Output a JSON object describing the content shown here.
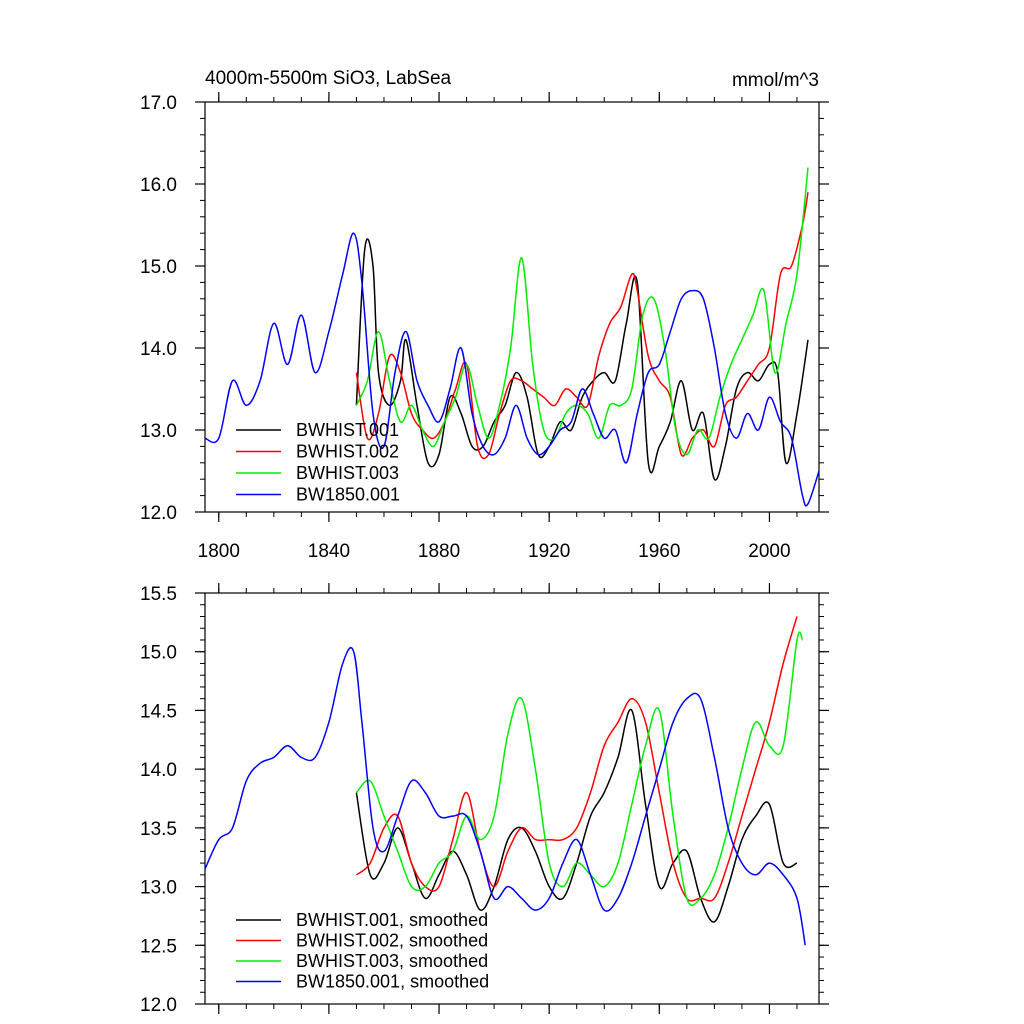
{
  "chart_data": [
    {
      "type": "line",
      "title": "4000m-5500m SiO3, LabSea",
      "units": "mmol/m^3",
      "xlim": [
        1795,
        2018
      ],
      "ylim": [
        12.0,
        17.0
      ],
      "xticks": [
        1800,
        1840,
        1880,
        1920,
        1960,
        2000
      ],
      "xtick_labels": [
        "1800",
        "1840",
        "1880",
        "1920",
        "1960",
        "2000"
      ],
      "yticks": [
        12.0,
        13.0,
        14.0,
        15.0,
        16.0,
        17.0
      ],
      "ytick_labels": [
        "12.0",
        "13.0",
        "14.0",
        "15.0",
        "16.0",
        "17.0"
      ],
      "legend_position": "lower-left",
      "series": [
        {
          "name": "BWHIST.001",
          "color": "#000000",
          "x": [
            1850,
            1853,
            1856,
            1858,
            1862,
            1866,
            1868,
            1872,
            1876,
            1880,
            1884,
            1888,
            1892,
            1896,
            1900,
            1904,
            1908,
            1912,
            1916,
            1920,
            1924,
            1928,
            1932,
            1936,
            1940,
            1944,
            1948,
            1952,
            1956,
            1960,
            1964,
            1968,
            1972,
            1976,
            1980,
            1984,
            1988,
            1992,
            1996,
            2000,
            2003,
            2006,
            2010,
            2014
          ],
          "y": [
            13.3,
            15.2,
            15.0,
            13.7,
            13.3,
            13.6,
            14.1,
            13.3,
            12.6,
            12.7,
            13.4,
            13.2,
            12.8,
            12.8,
            13.1,
            13.3,
            13.7,
            13.4,
            12.7,
            12.8,
            13.1,
            13.0,
            13.4,
            13.6,
            13.7,
            13.6,
            14.3,
            14.8,
            12.6,
            12.8,
            13.1,
            13.6,
            13.0,
            13.2,
            12.4,
            12.8,
            13.5,
            13.7,
            13.6,
            13.8,
            13.7,
            12.6,
            13.2,
            14.1
          ]
        },
        {
          "name": "BWHIST.002",
          "color": "#ff0000",
          "x": [
            1850,
            1854,
            1858,
            1862,
            1866,
            1870,
            1874,
            1878,
            1882,
            1886,
            1890,
            1894,
            1898,
            1902,
            1906,
            1910,
            1914,
            1918,
            1922,
            1926,
            1930,
            1934,
            1938,
            1942,
            1946,
            1950,
            1952,
            1956,
            1960,
            1964,
            1968,
            1972,
            1976,
            1980,
            1984,
            1988,
            1992,
            1996,
            2000,
            2004,
            2008,
            2012,
            2014
          ],
          "y": [
            13.7,
            12.9,
            13.2,
            13.9,
            13.7,
            13.2,
            13.0,
            12.9,
            13.1,
            13.5,
            13.8,
            12.8,
            12.7,
            13.2,
            13.6,
            13.6,
            13.5,
            13.4,
            13.3,
            13.5,
            13.4,
            13.3,
            13.9,
            14.3,
            14.5,
            14.9,
            14.7,
            13.9,
            13.6,
            13.4,
            12.7,
            12.9,
            13.0,
            12.8,
            13.3,
            13.4,
            13.6,
            13.8,
            14.0,
            14.9,
            15.0,
            15.5,
            15.9
          ]
        },
        {
          "name": "BWHIST.003",
          "color": "#00ee00",
          "x": [
            1850,
            1854,
            1858,
            1862,
            1866,
            1870,
            1874,
            1878,
            1882,
            1886,
            1890,
            1894,
            1898,
            1902,
            1906,
            1910,
            1914,
            1918,
            1922,
            1926,
            1930,
            1934,
            1938,
            1942,
            1946,
            1950,
            1954,
            1958,
            1962,
            1966,
            1970,
            1974,
            1978,
            1982,
            1986,
            1990,
            1994,
            1998,
            2002,
            2006,
            2010,
            2014
          ],
          "y": [
            13.3,
            13.6,
            14.2,
            13.6,
            13.1,
            13.3,
            13.0,
            12.8,
            13.1,
            13.4,
            13.8,
            13.3,
            12.9,
            13.3,
            14.0,
            15.1,
            13.8,
            13.0,
            12.9,
            13.2,
            13.3,
            13.2,
            12.9,
            13.3,
            13.3,
            13.5,
            14.4,
            14.6,
            14.0,
            13.0,
            12.7,
            13.0,
            12.9,
            13.4,
            13.8,
            14.1,
            14.4,
            14.7,
            13.7,
            14.3,
            14.9,
            16.2
          ]
        },
        {
          "name": "BW1850.001",
          "color": "#0000ff",
          "x": [
            1795,
            1800,
            1805,
            1810,
            1815,
            1820,
            1825,
            1830,
            1835,
            1840,
            1845,
            1849,
            1852,
            1856,
            1860,
            1864,
            1868,
            1872,
            1876,
            1880,
            1884,
            1888,
            1892,
            1896,
            1900,
            1904,
            1908,
            1912,
            1916,
            1920,
            1924,
            1928,
            1932,
            1936,
            1940,
            1944,
            1948,
            1952,
            1956,
            1960,
            1964,
            1968,
            1972,
            1976,
            1980,
            1984,
            1988,
            1992,
            1996,
            2000,
            2004,
            2008,
            2012,
            2014,
            2018
          ],
          "y": [
            12.9,
            12.9,
            13.6,
            13.3,
            13.6,
            14.3,
            13.8,
            14.4,
            13.7,
            14.2,
            14.9,
            15.4,
            14.8,
            13.2,
            12.8,
            13.7,
            14.2,
            13.6,
            13.3,
            13.1,
            13.5,
            14.0,
            13.2,
            12.8,
            12.7,
            12.9,
            13.3,
            12.9,
            12.7,
            12.8,
            13.0,
            13.1,
            13.5,
            13.2,
            12.9,
            13.0,
            12.6,
            13.2,
            13.7,
            13.8,
            14.2,
            14.6,
            14.7,
            14.6,
            14.0,
            13.2,
            12.9,
            13.2,
            13.0,
            13.4,
            13.1,
            12.9,
            12.2,
            12.1,
            12.5
          ]
        }
      ]
    },
    {
      "type": "line",
      "xlim": [
        1795,
        2018
      ],
      "ylim": [
        12.0,
        15.5
      ],
      "xticks": [
        1800,
        1840,
        1880,
        1920,
        1960,
        2000
      ],
      "yticks": [
        12.0,
        12.5,
        13.0,
        13.5,
        14.0,
        14.5,
        15.0,
        15.5
      ],
      "ytick_labels": [
        "12.0",
        "12.5",
        "13.0",
        "13.5",
        "14.0",
        "14.5",
        "15.0",
        "15.5"
      ],
      "legend_position": "lower-left",
      "series": [
        {
          "name": "BWHIST.001, smoothed",
          "color": "#000000",
          "x": [
            1850,
            1855,
            1860,
            1865,
            1870,
            1875,
            1880,
            1885,
            1890,
            1895,
            1900,
            1905,
            1910,
            1915,
            1920,
            1925,
            1930,
            1935,
            1940,
            1945,
            1950,
            1955,
            1960,
            1965,
            1970,
            1975,
            1980,
            1985,
            1990,
            1995,
            2000,
            2005,
            2010
          ],
          "y": [
            13.8,
            13.1,
            13.2,
            13.5,
            13.2,
            12.9,
            13.1,
            13.3,
            13.1,
            12.8,
            13.0,
            13.4,
            13.5,
            13.3,
            13.0,
            12.9,
            13.2,
            13.6,
            13.8,
            14.1,
            14.5,
            13.7,
            13.0,
            13.2,
            13.3,
            12.9,
            12.7,
            13.0,
            13.4,
            13.6,
            13.7,
            13.2,
            13.2
          ]
        },
        {
          "name": "BWHIST.002, smoothed",
          "color": "#ff0000",
          "x": [
            1850,
            1855,
            1860,
            1865,
            1870,
            1875,
            1880,
            1885,
            1890,
            1895,
            1900,
            1905,
            1910,
            1915,
            1920,
            1925,
            1930,
            1935,
            1940,
            1945,
            1950,
            1955,
            1960,
            1965,
            1970,
            1975,
            1980,
            1985,
            1990,
            1995,
            2000,
            2005,
            2010
          ],
          "y": [
            13.1,
            13.2,
            13.5,
            13.6,
            13.2,
            13.0,
            13.0,
            13.4,
            13.8,
            13.3,
            13.0,
            13.3,
            13.5,
            13.4,
            13.4,
            13.4,
            13.5,
            13.8,
            14.2,
            14.4,
            14.6,
            14.4,
            13.8,
            13.2,
            12.9,
            12.9,
            12.9,
            13.2,
            13.6,
            14.0,
            14.4,
            14.9,
            15.3
          ]
        },
        {
          "name": "BWHIST.003, smoothed",
          "color": "#00ee00",
          "x": [
            1850,
            1855,
            1860,
            1865,
            1870,
            1875,
            1880,
            1885,
            1890,
            1895,
            1900,
            1905,
            1910,
            1915,
            1920,
            1925,
            1930,
            1935,
            1940,
            1945,
            1950,
            1955,
            1960,
            1965,
            1970,
            1975,
            1980,
            1985,
            1990,
            1995,
            2000,
            2005,
            2010,
            2012
          ],
          "y": [
            13.8,
            13.9,
            13.6,
            13.3,
            13.0,
            13.0,
            13.2,
            13.3,
            13.6,
            13.4,
            13.6,
            14.3,
            14.6,
            14.0,
            13.2,
            13.0,
            13.2,
            13.1,
            13.0,
            13.2,
            13.7,
            14.2,
            14.5,
            13.6,
            12.9,
            12.9,
            13.1,
            13.5,
            14.0,
            14.4,
            14.2,
            14.2,
            15.1,
            15.1
          ]
        },
        {
          "name": "BW1850.001, smoothed",
          "color": "#0000ff",
          "x": [
            1795,
            1800,
            1805,
            1810,
            1815,
            1820,
            1825,
            1830,
            1835,
            1840,
            1845,
            1849,
            1852,
            1856,
            1860,
            1865,
            1870,
            1875,
            1880,
            1885,
            1890,
            1895,
            1900,
            1905,
            1910,
            1915,
            1920,
            1925,
            1930,
            1935,
            1940,
            1945,
            1950,
            1955,
            1960,
            1965,
            1970,
            1975,
            1980,
            1985,
            1990,
            1995,
            2000,
            2005,
            2010,
            2013
          ],
          "y": [
            13.15,
            13.4,
            13.5,
            13.9,
            14.05,
            14.1,
            14.2,
            14.1,
            14.1,
            14.4,
            14.9,
            15.0,
            14.4,
            13.5,
            13.3,
            13.6,
            13.9,
            13.8,
            13.6,
            13.6,
            13.6,
            13.3,
            12.9,
            13.0,
            12.9,
            12.8,
            12.9,
            13.2,
            13.4,
            13.1,
            12.8,
            12.9,
            13.2,
            13.6,
            14.0,
            14.4,
            14.6,
            14.6,
            14.1,
            13.5,
            13.2,
            13.1,
            13.2,
            13.1,
            12.9,
            12.5
          ]
        }
      ]
    }
  ]
}
